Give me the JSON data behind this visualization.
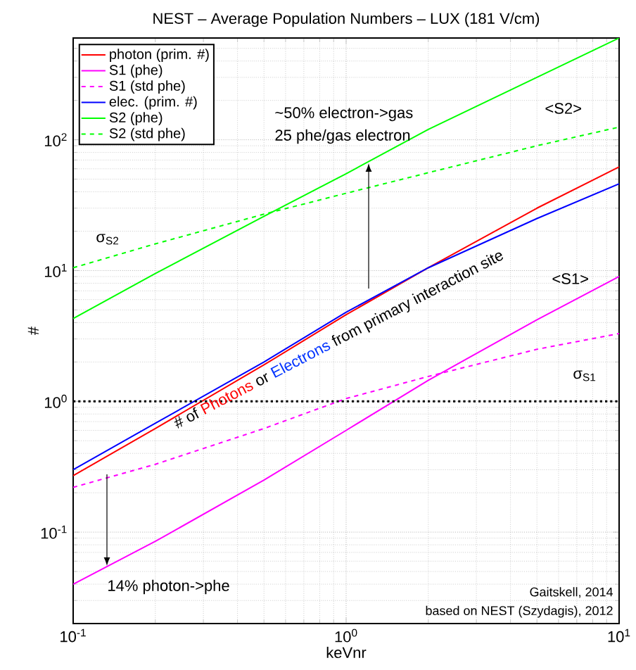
{
  "chart_data": {
    "type": "line",
    "title": "NEST – Average Population Numbers – LUX (181 V/cm)",
    "xlabel": "keVnr",
    "ylabel": "#",
    "log": "xy",
    "grid": true,
    "legend": "top left",
    "marker": "none",
    "xlim": [
      0.1,
      10
    ],
    "ylim": [
      0.02,
      600
    ],
    "xticks": [
      {
        "value": 0.1,
        "label": "10$^{-1}$"
      },
      {
        "value": 1,
        "label": "10$^{0}$"
      },
      {
        "value": 10,
        "label": "10$^{1}$"
      }
    ],
    "yticks": [
      {
        "value": 0.1,
        "label": "10$^{-1}$"
      },
      {
        "value": 1,
        "label": "10$^{0}$"
      },
      {
        "value": 10,
        "label": "10$^{1}$"
      },
      {
        "value": 100,
        "label": "10$^{2}$"
      }
    ],
    "x": [
      0.1,
      0.2,
      0.5,
      1,
      2,
      5,
      10
    ],
    "series": [
      {
        "name": "photon (prim. #)",
        "color": "#ff0000",
        "line_style": "solid",
        "values": [
          0.27,
          0.62,
          1.9,
          4.6,
          10.5,
          30,
          62
        ]
      },
      {
        "name": "S1 (phe)",
        "color": "#ff00ff",
        "line_style": "solid",
        "values": [
          0.04,
          0.085,
          0.25,
          0.6,
          1.45,
          4.2,
          9
        ]
      },
      {
        "name": "S1 (std phe)",
        "color": "#ff00ff",
        "line_style": "dashed",
        "values": [
          0.22,
          0.33,
          0.62,
          1.05,
          1.55,
          2.5,
          3.3
        ]
      },
      {
        "name": "elec. (prim. #)",
        "color": "#0000ff",
        "line_style": "solid",
        "values": [
          0.3,
          0.68,
          2.0,
          4.8,
          10.5,
          25,
          46
        ]
      },
      {
        "name": "S2 (phe)",
        "color": "#00ff00",
        "line_style": "solid",
        "values": [
          4.3,
          9.5,
          26,
          55,
          120,
          300,
          600
        ]
      },
      {
        "name": "S2 (std phe)",
        "color": "#00ff00",
        "line_style": "dashed",
        "values": [
          10.5,
          16,
          27,
          39,
          56,
          90,
          125
        ]
      }
    ],
    "ref_lines": [
      {
        "axis": "y",
        "value": 1,
        "color": "#000000",
        "line_style": "dotted"
      }
    ],
    "annotations": [
      "~50% electron->gas",
      "25 phe/gas electron",
      "<S2>",
      "<S1>",
      "σ$_{S2}$",
      "σ$_{S1}$",
      "14% photon->phe",
      "# of ",
      "Photons",
      " or ",
      "Electrons",
      " from primary interaction site",
      "Gaitskell, 2014",
      "based on NEST (Szydagis), 2012"
    ]
  }
}
